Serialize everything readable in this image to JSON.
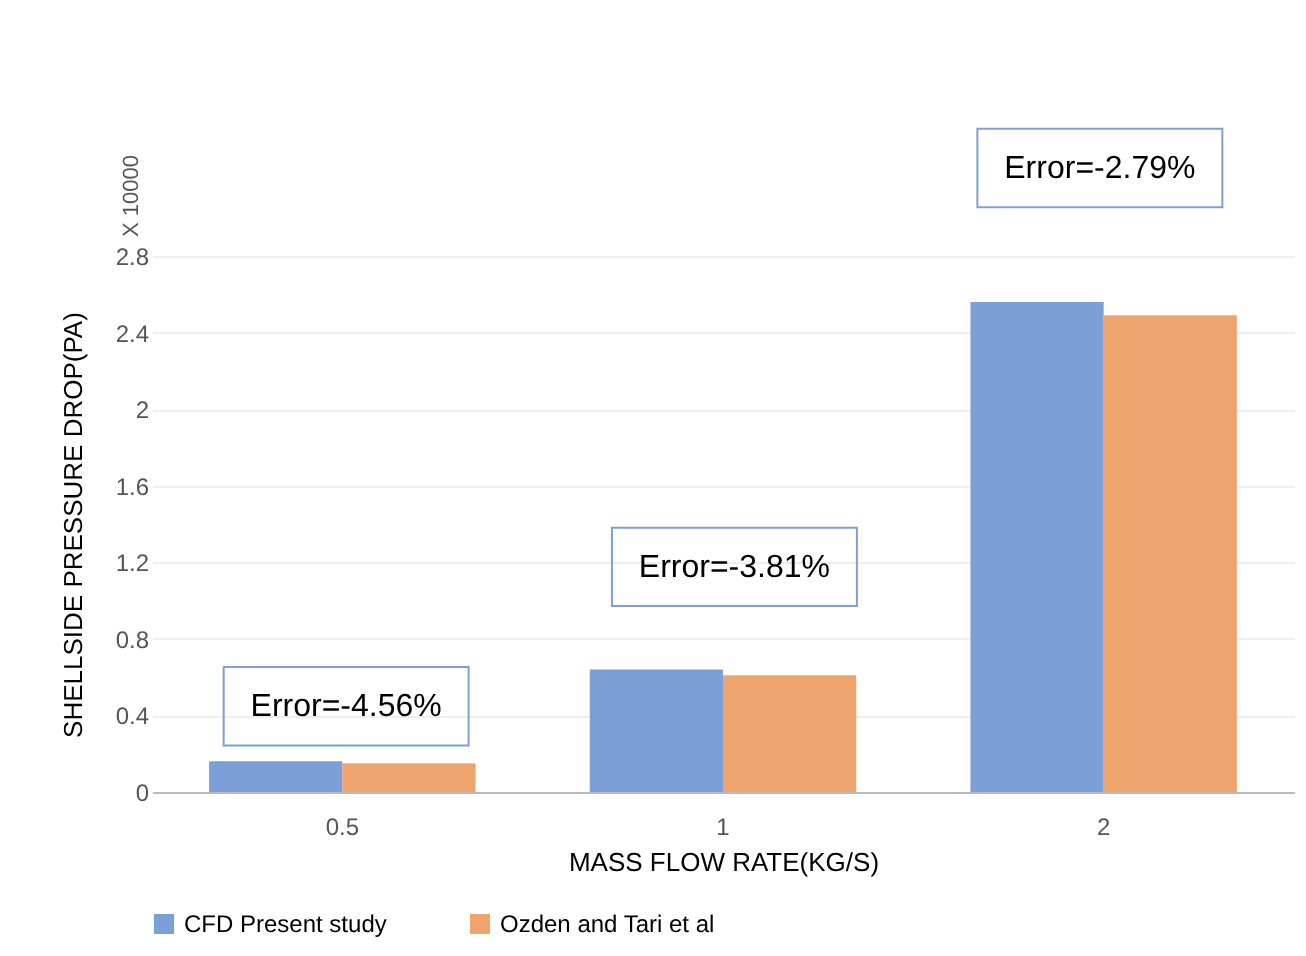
{
  "chart_data": {
    "type": "bar",
    "xlabel": "MASS FLOW  RATE(KG/S)",
    "ylabel": "SHELLSIDE PRESSURE DROP(PA)",
    "categories": [
      "0.5",
      "1",
      "2"
    ],
    "series": [
      {
        "name": "CFD Present study",
        "color": "#7b9fd6",
        "values": [
          0.16,
          0.64,
          2.56
        ]
      },
      {
        "name": "Ozden and Tari et al",
        "color": "#f0a46d",
        "values": [
          0.15,
          0.61,
          2.49
        ]
      }
    ],
    "ylim": [
      0,
      2.8
    ],
    "yticks": [
      0,
      0.4,
      0.8,
      1.2,
      1.6,
      2,
      2.4,
      2.8
    ],
    "grid": "y",
    "legend": "bottom",
    "annotations": [
      "X 10000",
      "Error=-4.56%",
      "Error=-3.81%",
      "Error=-2.79%"
    ]
  }
}
